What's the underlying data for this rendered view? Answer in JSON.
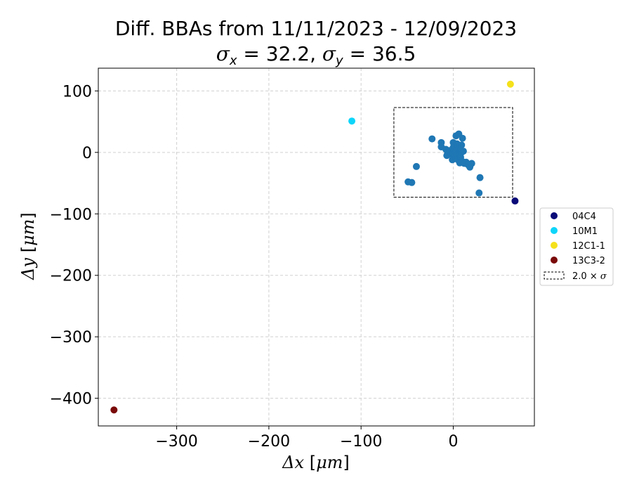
{
  "chart_data": {
    "type": "scatter",
    "title": "Diff. BBAs from 11/11/2023 - 12/09/2023",
    "subtitle": {
      "sigma_x_label": "x",
      "sigma_x_value": "32.2",
      "sigma_y_label": "y",
      "sigma_y_value": "36.5"
    },
    "xlabel": {
      "prefix": "Δx",
      "unit": "μm"
    },
    "ylabel": {
      "prefix": "Δy",
      "unit": "μm"
    },
    "xlim": [
      -385,
      88
    ],
    "ylim": [
      -445,
      137
    ],
    "xticks": [
      {
        "value": -300,
        "label": "−300"
      },
      {
        "value": -200,
        "label": "−200"
      },
      {
        "value": -100,
        "label": "−100"
      },
      {
        "value": 0,
        "label": "0"
      }
    ],
    "yticks": [
      {
        "value": 100,
        "label": "100"
      },
      {
        "value": 0,
        "label": "0"
      },
      {
        "value": -100,
        "label": "−100"
      },
      {
        "value": -200,
        "label": "−200"
      },
      {
        "value": -300,
        "label": "−300"
      },
      {
        "value": -400,
        "label": "−400"
      }
    ],
    "grid": true,
    "legend_position": "outside-right",
    "sigma_box": {
      "x0": -64.4,
      "x1": 64.4,
      "y0": -73,
      "y1": 73
    },
    "base_color": "#1f77b4",
    "series": [
      {
        "points": [
          [
            -23,
            22
          ],
          [
            -13,
            16
          ],
          [
            -13,
            9
          ],
          [
            -8,
            5
          ],
          [
            -6,
            0
          ],
          [
            -7,
            -5
          ],
          [
            -4,
            3
          ],
          [
            -2,
            -3
          ],
          [
            -1,
            -12
          ],
          [
            0,
            8
          ],
          [
            0,
            16
          ],
          [
            0,
            -2
          ],
          [
            1,
            12
          ],
          [
            1,
            4
          ],
          [
            2,
            0
          ],
          [
            2,
            -6
          ],
          [
            3,
            -9
          ],
          [
            3,
            27
          ],
          [
            3,
            2
          ],
          [
            4,
            14
          ],
          [
            4,
            -4
          ],
          [
            5,
            10
          ],
          [
            5,
            -12
          ],
          [
            6,
            6
          ],
          [
            6,
            30
          ],
          [
            7,
            -2
          ],
          [
            7,
            -17
          ],
          [
            8,
            3
          ],
          [
            8,
            -8
          ],
          [
            9,
            12
          ],
          [
            9,
            0
          ],
          [
            10,
            23
          ],
          [
            10,
            -15
          ],
          [
            11,
            2
          ],
          [
            12,
            -18
          ],
          [
            14,
            -16
          ],
          [
            16,
            -20
          ],
          [
            18,
            -24
          ],
          [
            20,
            -18
          ],
          [
            28,
            -66
          ],
          [
            29,
            -41
          ],
          [
            -40,
            -23
          ],
          [
            -45,
            -49
          ],
          [
            -49,
            -48
          ]
        ]
      },
      {
        "name": "04C4",
        "color": "#0a0a78",
        "points": [
          [
            67,
            -79
          ]
        ]
      },
      {
        "name": "10M1",
        "color": "#0dd5fa",
        "points": [
          [
            -110,
            51
          ]
        ]
      },
      {
        "name": "12C1-1",
        "color": "#f5e11b",
        "points": [
          [
            62,
            111
          ]
        ]
      },
      {
        "name": "13C3-2",
        "color": "#7a0a0a",
        "points": [
          [
            -368,
            -419
          ]
        ]
      }
    ],
    "legend_box_label": {
      "value": "2.0",
      "symbol": "σ"
    }
  }
}
